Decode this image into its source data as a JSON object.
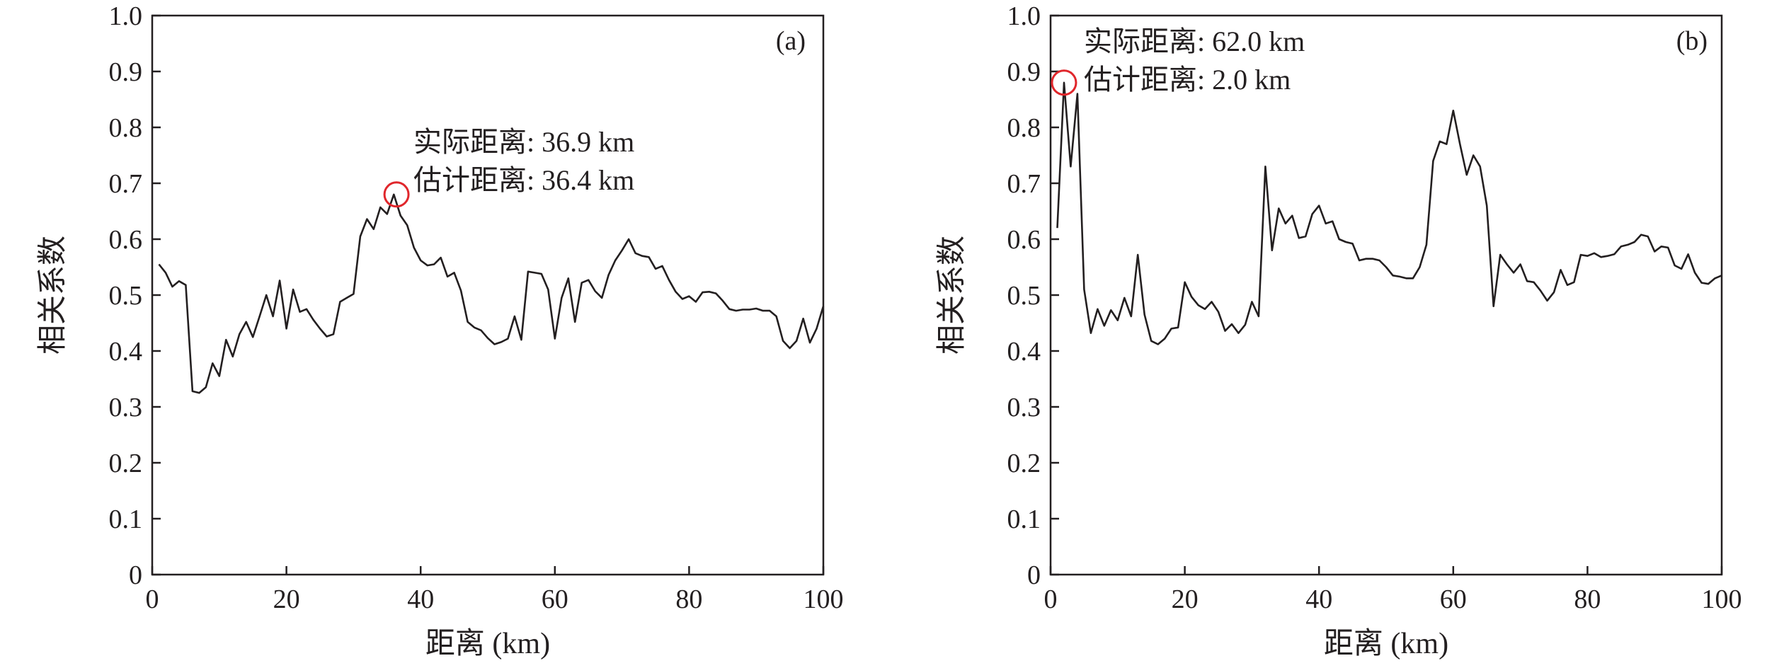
{
  "colors": {
    "line": "#231f20",
    "marker": "#e0262b"
  },
  "chart_data": [
    {
      "type": "line",
      "panel_label": "(a)",
      "xlabel": "距离 (km)",
      "ylabel": "相关系数",
      "xlim": [
        0,
        100
      ],
      "ylim": [
        0,
        1.0
      ],
      "xticks": [
        "0",
        "20",
        "40",
        "60",
        "80",
        "100"
      ],
      "yticks": [
        "0",
        "0.1",
        "0.2",
        "0.3",
        "0.4",
        "0.5",
        "0.6",
        "0.7",
        "0.8",
        "0.9",
        "1.0"
      ],
      "series": [
        {
          "x": [
            1,
            2,
            3,
            4,
            5,
            6,
            7,
            8,
            9,
            10,
            11,
            12,
            13,
            14,
            15,
            16,
            17,
            18,
            19,
            20,
            21,
            22,
            23,
            24,
            25,
            26,
            27,
            28,
            29,
            30,
            31,
            32,
            33,
            34,
            35,
            36,
            37,
            38,
            39,
            40,
            41,
            42,
            43,
            44,
            45,
            46,
            47,
            48,
            49,
            50,
            51,
            52,
            53,
            54,
            55,
            56,
            57,
            58,
            59,
            60,
            61,
            62,
            63,
            64,
            65,
            66,
            67,
            68,
            69,
            70,
            71,
            72,
            73,
            74,
            75,
            76,
            77,
            78,
            79,
            80,
            81,
            82,
            83,
            84,
            85,
            86,
            87,
            88,
            89,
            90,
            91,
            92,
            93,
            94,
            95,
            96,
            97,
            98,
            99,
            100
          ],
          "y": [
            0.555,
            0.54,
            0.515,
            0.525,
            0.518,
            0.328,
            0.325,
            0.335,
            0.378,
            0.355,
            0.42,
            0.39,
            0.43,
            0.452,
            0.425,
            0.462,
            0.5,
            0.462,
            0.526,
            0.44,
            0.51,
            0.47,
            0.475,
            0.456,
            0.44,
            0.426,
            0.43,
            0.488,
            0.495,
            0.502,
            0.605,
            0.636,
            0.618,
            0.657,
            0.645,
            0.68,
            0.642,
            0.625,
            0.585,
            0.562,
            0.553,
            0.555,
            0.567,
            0.533,
            0.54,
            0.508,
            0.452,
            0.442,
            0.437,
            0.423,
            0.412,
            0.416,
            0.422,
            0.462,
            0.42,
            0.542,
            0.54,
            0.538,
            0.51,
            0.422,
            0.495,
            0.53,
            0.452,
            0.522,
            0.527,
            0.507,
            0.495,
            0.536,
            0.562,
            0.58,
            0.6,
            0.575,
            0.57,
            0.568,
            0.547,
            0.552,
            0.527,
            0.506,
            0.493,
            0.498,
            0.488,
            0.505,
            0.506,
            0.503,
            0.49,
            0.475,
            0.472,
            0.474,
            0.474,
            0.476,
            0.472,
            0.472,
            0.462,
            0.418,
            0.405,
            0.418,
            0.458,
            0.415,
            0.44,
            0.48
          ]
        }
      ],
      "highlight": {
        "x": 36.4,
        "y": 0.68
      },
      "annotation": [
        "实际距离: 36.9 km",
        "估计距离: 36.4 km"
      ]
    },
    {
      "type": "line",
      "panel_label": "(b)",
      "xlabel": "距离 (km)",
      "ylabel": "相关系数",
      "xlim": [
        0,
        100
      ],
      "ylim": [
        0,
        1.0
      ],
      "xticks": [
        "0",
        "20",
        "40",
        "60",
        "80",
        "100"
      ],
      "yticks": [
        "0",
        "0.1",
        "0.2",
        "0.3",
        "0.4",
        "0.5",
        "0.6",
        "0.7",
        "0.8",
        "0.9",
        "1.0"
      ],
      "series": [
        {
          "x": [
            1,
            2,
            3,
            4,
            5,
            6,
            7,
            8,
            9,
            10,
            11,
            12,
            13,
            14,
            15,
            16,
            17,
            18,
            19,
            20,
            21,
            22,
            23,
            24,
            25,
            26,
            27,
            28,
            29,
            30,
            31,
            32,
            33,
            34,
            35,
            36,
            37,
            38,
            39,
            40,
            41,
            42,
            43,
            44,
            45,
            46,
            47,
            48,
            49,
            50,
            51,
            52,
            53,
            54,
            55,
            56,
            57,
            58,
            59,
            60,
            61,
            62,
            63,
            64,
            65,
            66,
            67,
            68,
            69,
            70,
            71,
            72,
            73,
            74,
            75,
            76,
            77,
            78,
            79,
            80,
            81,
            82,
            83,
            84,
            85,
            86,
            87,
            88,
            89,
            90,
            91,
            92,
            93,
            94,
            95,
            96,
            97,
            98,
            99,
            100
          ],
          "y": [
            0.62,
            0.88,
            0.73,
            0.86,
            0.51,
            0.432,
            0.475,
            0.445,
            0.473,
            0.455,
            0.495,
            0.462,
            0.572,
            0.465,
            0.418,
            0.412,
            0.422,
            0.44,
            0.442,
            0.523,
            0.497,
            0.482,
            0.475,
            0.488,
            0.47,
            0.436,
            0.448,
            0.432,
            0.447,
            0.488,
            0.462,
            0.73,
            0.58,
            0.655,
            0.628,
            0.642,
            0.602,
            0.605,
            0.645,
            0.66,
            0.628,
            0.632,
            0.6,
            0.595,
            0.592,
            0.562,
            0.565,
            0.565,
            0.562,
            0.55,
            0.535,
            0.533,
            0.53,
            0.53,
            0.55,
            0.59,
            0.74,
            0.775,
            0.77,
            0.83,
            0.77,
            0.715,
            0.75,
            0.73,
            0.66,
            0.48,
            0.572,
            0.555,
            0.54,
            0.555,
            0.525,
            0.523,
            0.508,
            0.49,
            0.505,
            0.545,
            0.518,
            0.523,
            0.572,
            0.57,
            0.575,
            0.568,
            0.57,
            0.573,
            0.587,
            0.59,
            0.595,
            0.608,
            0.605,
            0.578,
            0.587,
            0.585,
            0.553,
            0.547,
            0.573,
            0.54,
            0.522,
            0.52,
            0.53,
            0.535
          ]
        }
      ],
      "highlight": {
        "x": 2.0,
        "y": 0.88
      },
      "annotation": [
        "实际距离: 62.0 km",
        "估计距离: 2.0 km"
      ]
    }
  ]
}
